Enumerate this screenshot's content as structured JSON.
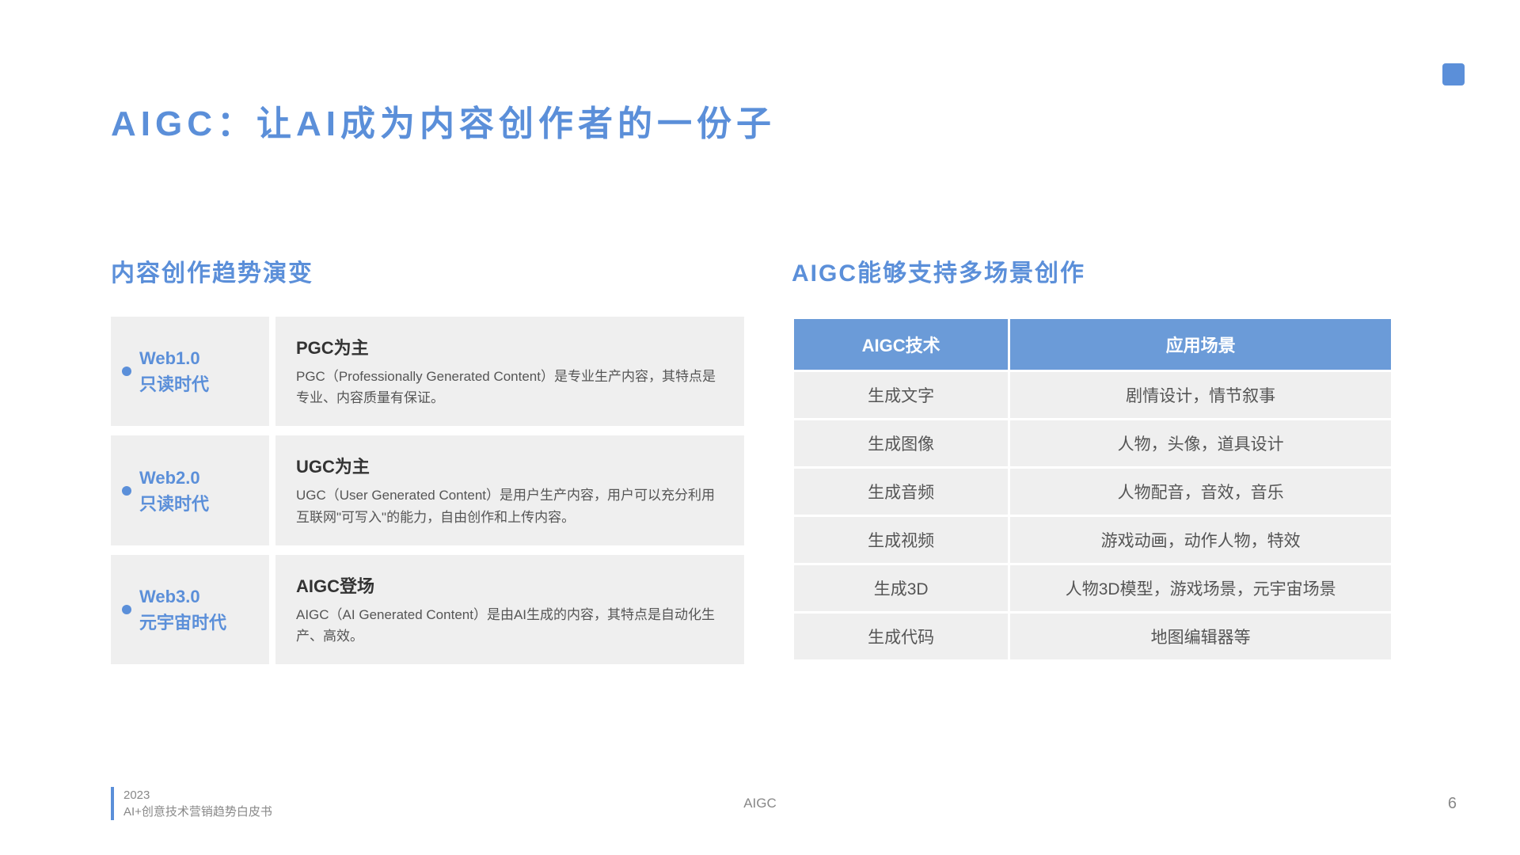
{
  "colors": {
    "accent": "#5b8fd9",
    "panel_bg": "#efefef",
    "table_header_bg": "#6b9bd8",
    "text_dark": "#333333",
    "text_body": "#555555",
    "text_muted": "#888888",
    "page_bg": "#ffffff"
  },
  "slide": {
    "title": "AIGC：让AI成为内容创作者的一份子"
  },
  "left": {
    "heading": "内容创作趋势演变",
    "rows": [
      {
        "era_title": "Web1.0",
        "era_sub": "只读时代",
        "desc_title": "PGC为主",
        "desc_body": "PGC（Professionally Generated Content）是专业生产内容，其特点是专业、内容质量有保证。"
      },
      {
        "era_title": "Web2.0",
        "era_sub": "只读时代",
        "desc_title": "UGC为主",
        "desc_body": "UGC（User Generated Content）是用户生产内容，用户可以充分利用互联网\"可写入\"的能力，自由创作和上传内容。"
      },
      {
        "era_title": "Web3.0",
        "era_sub": "元宇宙时代",
        "desc_title": "AIGC登场",
        "desc_body": "AIGC（AI Generated Content）是由AI生成的内容，其特点是自动化生产、高效。"
      }
    ]
  },
  "right": {
    "heading": "AIGC能够支持多场景创作",
    "table": {
      "header_tech": "AIGC技术",
      "header_scene": "应用场景",
      "rows": [
        {
          "tech": "生成文字",
          "scene": "剧情设计，情节叙事"
        },
        {
          "tech": "生成图像",
          "scene": "人物，头像，道具设计"
        },
        {
          "tech": "生成音频",
          "scene": "人物配音，音效，音乐"
        },
        {
          "tech": "生成视频",
          "scene": "游戏动画，动作人物，特效"
        },
        {
          "tech": "生成3D",
          "scene": "人物3D模型，游戏场景，元宇宙场景"
        },
        {
          "tech": "生成代码",
          "scene": "地图编辑器等"
        }
      ]
    }
  },
  "footer": {
    "year": "2023",
    "subtitle": "AI+创意技术营销趋势白皮书",
    "center": "AIGC",
    "page": "6"
  }
}
